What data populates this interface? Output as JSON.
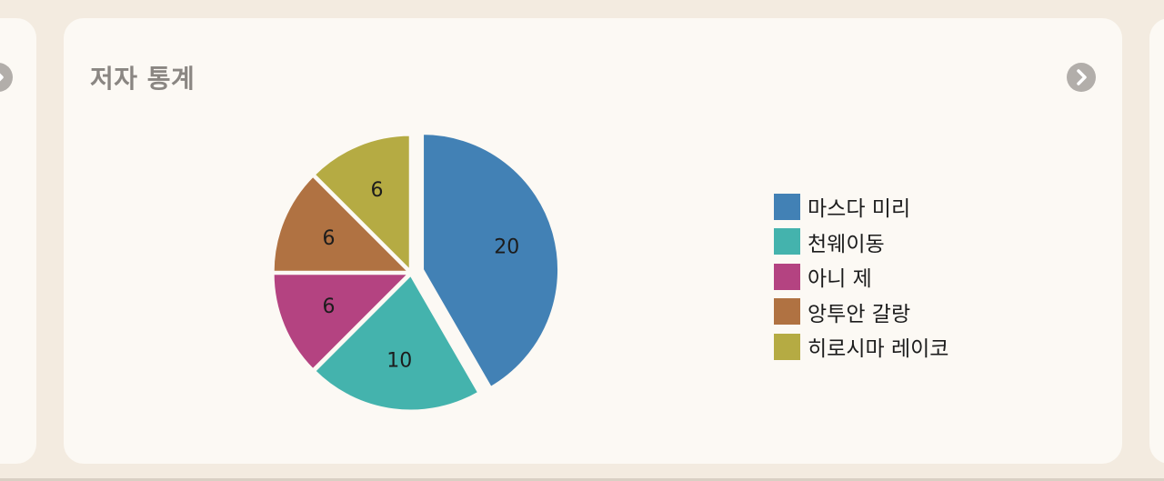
{
  "card": {
    "title": "저자 통계"
  },
  "icons": {
    "next": "chevron-right-icon"
  },
  "colors": {
    "page_bg": "#f3ebe0",
    "card_bg": "#fcf9f4",
    "title": "#8a8682",
    "arrow_button": "#b2aeaa"
  },
  "chart_data": {
    "type": "pie",
    "title": "저자 통계",
    "legend_position": "right",
    "slices": [
      {
        "label": "마스다 미리",
        "value": 20,
        "color": "#4281b5"
      },
      {
        "label": "천웨이동",
        "value": 10,
        "color": "#44b3ad"
      },
      {
        "label": "아니 제",
        "value": 6,
        "color": "#b44381"
      },
      {
        "label": "앙투안 갈랑",
        "value": 6,
        "color": "#b07242"
      },
      {
        "label": "히로시마 레이코",
        "value": 6,
        "color": "#b5ab43"
      }
    ]
  }
}
